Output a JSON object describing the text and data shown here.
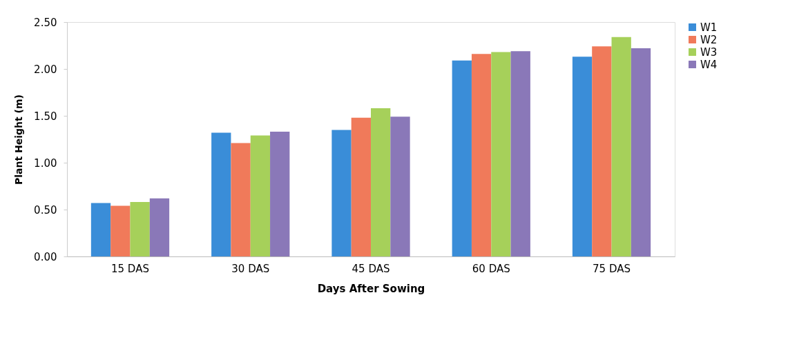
{
  "chart_data": {
    "type": "bar",
    "xlabel": "Days After Sowing",
    "ylabel": "Plant Height (m)",
    "categories": [
      "15 DAS",
      "30 DAS",
      "45 DAS",
      "60 DAS",
      "75 DAS"
    ],
    "series": [
      {
        "name": "W1",
        "color": "#3a8dd8",
        "values": [
          0.57,
          1.32,
          1.35,
          2.09,
          2.13
        ]
      },
      {
        "name": "W2",
        "color": "#f07a5a",
        "values": [
          0.54,
          1.21,
          1.48,
          2.16,
          2.24
        ]
      },
      {
        "name": "W3",
        "color": "#a6d05a",
        "values": [
          0.58,
          1.29,
          1.58,
          2.18,
          2.34
        ]
      },
      {
        "name": "W4",
        "color": "#8a78b8",
        "values": [
          0.62,
          1.33,
          1.49,
          2.19,
          2.22
        ]
      }
    ],
    "ylim": [
      0,
      2.5
    ],
    "yticks": [
      {
        "value": 0,
        "label": "0.00"
      },
      {
        "value": 0.5,
        "label": "0.50"
      },
      {
        "value": 1,
        "label": "1.00"
      },
      {
        "value": 1.5,
        "label": "1.50"
      },
      {
        "value": 2,
        "label": "2.00"
      },
      {
        "value": 2.5,
        "label": "2.50"
      }
    ],
    "grid": false,
    "legend": "right"
  }
}
